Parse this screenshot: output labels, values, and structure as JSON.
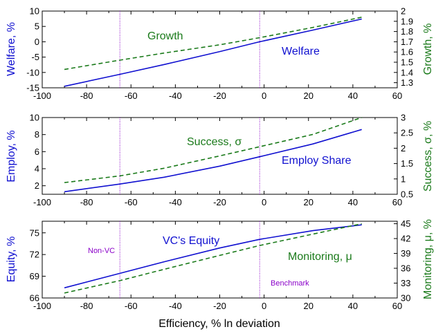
{
  "colors": {
    "left_series": "#1010d0",
    "right_series": "#1a7a1a",
    "vlines": "#8a00c8",
    "axis": "#000000"
  },
  "figure": {
    "xlabel": "Efficiency, % ln deviation",
    "vlines": {
      "x": [
        -65,
        -2
      ],
      "labels": {
        "left": "Non-VC",
        "right": "Benchmark"
      }
    }
  },
  "chart_data": [
    {
      "type": "line",
      "panel": "top",
      "xlim": [
        -100,
        60
      ],
      "xticks": [
        -100,
        -80,
        -60,
        -40,
        -20,
        0,
        20,
        40,
        60
      ],
      "ylabel_left": "Welfare, %",
      "ylabel_right": "Growth, %",
      "ylim_left": [
        -15,
        10
      ],
      "yticks_left": [
        -15,
        -10,
        -5,
        0,
        5,
        10
      ],
      "ylim_right": [
        1.25,
        2.0
      ],
      "yticks_right": [
        1.3,
        1.4,
        1.5,
        1.6,
        1.7,
        1.8,
        1.9,
        2.0
      ],
      "series": [
        {
          "name": "Welfare",
          "axis": "left",
          "style": "solid",
          "x": [
            -90,
            -65,
            -45,
            -20,
            -2,
            22,
            44
          ],
          "values": [
            -14.5,
            -10.6,
            -7.4,
            -3.2,
            0.0,
            3.8,
            7.4
          ]
        },
        {
          "name": "Growth",
          "axis": "right",
          "style": "dashed",
          "x": [
            -90,
            -65,
            -45,
            -20,
            -2,
            22,
            44
          ],
          "values": [
            1.43,
            1.52,
            1.59,
            1.67,
            1.74,
            1.84,
            1.94
          ]
        }
      ],
      "annotations": [
        {
          "text": "Growth",
          "color": "green"
        },
        {
          "text": "Welfare",
          "color": "blue"
        }
      ]
    },
    {
      "type": "line",
      "panel": "middle",
      "xlim": [
        -100,
        60
      ],
      "xticks": [
        -100,
        -80,
        -60,
        -40,
        -20,
        0,
        20,
        40,
        60
      ],
      "ylabel_left": "Employ, %",
      "ylabel_right": "Success, σ, %",
      "ylim_left": [
        1,
        10
      ],
      "yticks_left": [
        2,
        4,
        6,
        8,
        10
      ],
      "ylim_right": [
        0.5,
        3.0
      ],
      "yticks_right": [
        0.5,
        1.0,
        1.5,
        2.0,
        2.5,
        3.0
      ],
      "series": [
        {
          "name": "Employ Share",
          "axis": "left",
          "style": "solid",
          "x": [
            -90,
            -65,
            -45,
            -20,
            -2,
            22,
            44
          ],
          "values": [
            1.3,
            2.2,
            3.0,
            4.3,
            5.4,
            6.9,
            8.6
          ]
        },
        {
          "name": "Success, σ",
          "axis": "right",
          "style": "dashed",
          "x": [
            -90,
            -65,
            -45,
            -20,
            -2,
            22,
            44
          ],
          "values": [
            0.88,
            1.1,
            1.35,
            1.75,
            2.05,
            2.45,
            3.0
          ]
        }
      ],
      "annotations": [
        {
          "text": "Success, σ",
          "color": "green"
        },
        {
          "text": "Employ Share",
          "color": "blue"
        }
      ]
    },
    {
      "type": "line",
      "panel": "bottom",
      "xlim": [
        -100,
        60
      ],
      "xticks": [
        -100,
        -80,
        -60,
        -40,
        -20,
        0,
        20,
        40,
        60
      ],
      "ylabel_left": "Equity, %",
      "ylabel_right": "Monitoring, μ, %",
      "ylim_left": [
        66,
        76.6
      ],
      "yticks_left": [
        66,
        69,
        72,
        75
      ],
      "ylim_right": [
        30,
        45.5
      ],
      "yticks_right": [
        30,
        33,
        36,
        39,
        42,
        45
      ],
      "series": [
        {
          "name": "VC's Equity",
          "axis": "left",
          "style": "solid",
          "x": [
            -90,
            -65,
            -45,
            -20,
            -2,
            22,
            44
          ],
          "values": [
            67.4,
            69.4,
            71.0,
            72.9,
            74.1,
            75.3,
            76.1
          ]
        },
        {
          "name": "Monitoring, μ",
          "axis": "right",
          "style": "dashed",
          "x": [
            -90,
            -65,
            -45,
            -20,
            -2,
            22,
            44
          ],
          "values": [
            31.0,
            33.5,
            35.8,
            38.6,
            40.6,
            42.9,
            45.0
          ]
        }
      ],
      "annotations": [
        {
          "text": "VC's Equity",
          "color": "blue"
        },
        {
          "text": "Monitoring, μ",
          "color": "green"
        }
      ]
    }
  ]
}
